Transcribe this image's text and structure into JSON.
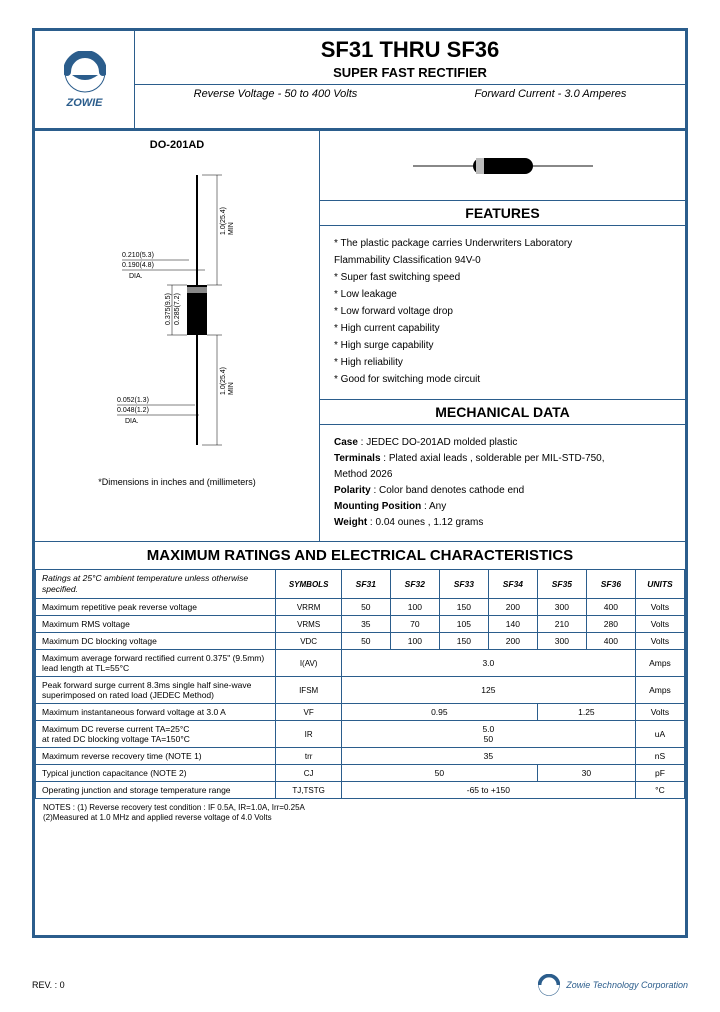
{
  "colors": {
    "frame": "#2b5d8c",
    "text": "#000000",
    "bg": "#ffffff"
  },
  "logo": {
    "text": "ZOWIE"
  },
  "header": {
    "title": "SF31  THRU  SF36",
    "subtitle": "SUPER  FAST  RECTIFIER",
    "spec_left": "Reverse Voltage - 50 to 400 Volts",
    "spec_right": "Forward Current - 3.0 Amperes"
  },
  "diagram": {
    "title": "DO-201AD",
    "note": "*Dimensions in inches and (millimeters)",
    "dims": {
      "top_w1": "0.210(5.3)",
      "top_w2": "0.190(4.8)",
      "top_dia": "DIA.",
      "body_h1": "0.375(9.5)",
      "body_h2": "0.285(7.2)",
      "lead_len": "1.0(25.4)",
      "lead_min": "MIN",
      "lead_d1": "0.052(1.3)",
      "lead_d2": "0.048(1.2)",
      "lead_dia": "DIA."
    }
  },
  "features": {
    "header": "FEATURES",
    "items": [
      "* The plastic package carries Underwriters Laboratory",
      "   Flammability Classification 94V-0",
      "*  Super fast switching speed",
      "* Low leakage",
      "*  Low forward voltage drop",
      "*  High current capability",
      "* High surge capability",
      "*  High reliability",
      "*  Good for switching mode circuit"
    ]
  },
  "mechanical": {
    "header": "MECHANICAL DATA",
    "lines": [
      {
        "label": "Case",
        "value": ": JEDEC DO-201AD molded plastic"
      },
      {
        "label": "Terminals",
        "value": ": Plated axial leads , solderable per MIL-STD-750,"
      },
      {
        "label": "",
        "value": "              Method 2026"
      },
      {
        "label": "Polarity",
        "value": ": Color band denotes cathode end"
      },
      {
        "label": "Mounting Position",
        "value": ": Any"
      },
      {
        "label": "Weight",
        "value": ": 0.04 ounes , 1.12 grams"
      }
    ]
  },
  "ratings": {
    "header": "MAXIMUM RATINGS AND ELECTRICAL CHARACTERISTICS",
    "head_note": "Ratings at 25°C ambient temperature unless otherwise specified.",
    "columns": [
      "SYMBOLS",
      "SF31",
      "SF32",
      "SF33",
      "SF34",
      "SF35",
      "SF36",
      "UNITS"
    ],
    "rows": [
      {
        "label": "Maximum repetitive peak reverse voltage",
        "sym": "VRRM",
        "vals": [
          "50",
          "100",
          "150",
          "200",
          "300",
          "400"
        ],
        "unit": "Volts"
      },
      {
        "label": "Maximum RMS voltage",
        "sym": "VRMS",
        "vals": [
          "35",
          "70",
          "105",
          "140",
          "210",
          "280"
        ],
        "unit": "Volts"
      },
      {
        "label": "Maximum DC blocking voltage",
        "sym": "VDC",
        "vals": [
          "50",
          "100",
          "150",
          "200",
          "300",
          "400"
        ],
        "unit": "Volts"
      },
      {
        "label": "Maximum average forward rectified current 0.375\" (9.5mm) lead length at TL=55°C",
        "sym": "I(AV)",
        "span": "3.0",
        "unit": "Amps"
      },
      {
        "label": "Peak forward surge current 8.3ms single half sine-wave superimposed on rated load (JEDEC Method)",
        "sym": "IFSM",
        "span": "125",
        "unit": "Amps"
      },
      {
        "label": "Maximum instantaneous forward voltage at 3.0 A",
        "sym": "VF",
        "split": [
          "0.95",
          "1.25"
        ],
        "split_cols": [
          4,
          2
        ],
        "unit": "Volts"
      },
      {
        "label": "Maximum DC reverse current                    TA=25°C\nat rated DC blocking voltage                      TA=150°C",
        "sym": "IR",
        "stack": [
          "5.0",
          "50"
        ],
        "unit": "uA"
      },
      {
        "label": "Maximum reverse recovery time (NOTE 1)",
        "sym": "trr",
        "span": "35",
        "unit": "nS"
      },
      {
        "label": "Typical junction capacitance (NOTE 2)",
        "sym": "CJ",
        "split": [
          "50",
          "30"
        ],
        "split_cols": [
          4,
          2
        ],
        "unit": "pF"
      },
      {
        "label": "Operating junction and storage temperature range",
        "sym": "TJ,TSTG",
        "span": "-65 to +150",
        "unit": "°C"
      }
    ],
    "notes": "NOTES : (1) Reverse recovery test condition : IF 0.5A, IR=1.0A, Irr=0.25A\n              (2)Measured at 1.0 MHz and applied reverse voltage of 4.0 Volts"
  },
  "footer": {
    "rev": "REV. : 0",
    "company": "Zowie Technology Corporation"
  }
}
